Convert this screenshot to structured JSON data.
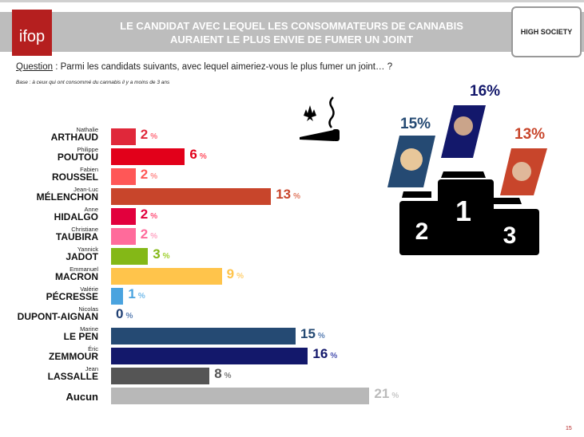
{
  "header": {
    "logo": "ifop",
    "title_line1": "LE CANDIDAT AVEC LEQUEL LES CONSOMMATEURS DE CANNABIS",
    "title_line2": "AURAIENT LE PLUS ENVIE DE FUMER UN JOINT",
    "partner_logo": "HIGH SOCIETY"
  },
  "question": {
    "label": "Question",
    "text": " : Parmi les candidats suivants, avec lequel aimeriez-vous le plus fumer un joint… ?"
  },
  "base": "Base : à ceux qui ont consommé du cannabis il y a moins de 3 ans",
  "chart_data": {
    "type": "bar",
    "orientation": "horizontal",
    "unit": "%",
    "categories": [
      {
        "first": "Nathalie",
        "last": "ARTHAUD",
        "value": 2,
        "color": "#e0283a"
      },
      {
        "first": "Philippe",
        "last": "POUTOU",
        "value": 6,
        "color": "#e2001a"
      },
      {
        "first": "Fabien",
        "last": "ROUSSEL",
        "value": 2,
        "color": "#ff5757"
      },
      {
        "first": "Jean-Luc",
        "last": "MÉLENCHON",
        "value": 13,
        "color": "#c8452b"
      },
      {
        "first": "Anne",
        "last": "HIDALGO",
        "value": 2,
        "color": "#e2003d"
      },
      {
        "first": "Christiane",
        "last": "TAUBIRA",
        "value": 2,
        "color": "#ff6b9b"
      },
      {
        "first": "Yannick",
        "last": "JADOT",
        "value": 3,
        "color": "#84b817"
      },
      {
        "first": "Emmanuel",
        "last": "MACRON",
        "value": 9,
        "color": "#ffc44b"
      },
      {
        "first": "Valérie",
        "last": "PÉCRESSE",
        "value": 1,
        "color": "#4aa3df"
      },
      {
        "first": "Nicolas",
        "last": "DUPONT-AIGNAN",
        "value": 0,
        "color": "#1f3f73"
      },
      {
        "first": "Marine",
        "last": "LE PEN",
        "value": 15,
        "color": "#254a73"
      },
      {
        "first": "Éric",
        "last": "ZEMMOUR",
        "value": 16,
        "color": "#13186b"
      },
      {
        "first": "Jean",
        "last": "LASSALLE",
        "value": 8,
        "color": "#555555"
      },
      {
        "first": "",
        "last": "Aucun",
        "value": 21,
        "color": "#b8b8b8"
      }
    ]
  },
  "podium": {
    "first": {
      "rank": "1",
      "pct": "16%",
      "color": "#13186b"
    },
    "second": {
      "rank": "2",
      "pct": "15%",
      "color": "#254a73"
    },
    "third": {
      "rank": "3",
      "pct": "13%",
      "color": "#c8452b"
    }
  },
  "page_number": "15"
}
